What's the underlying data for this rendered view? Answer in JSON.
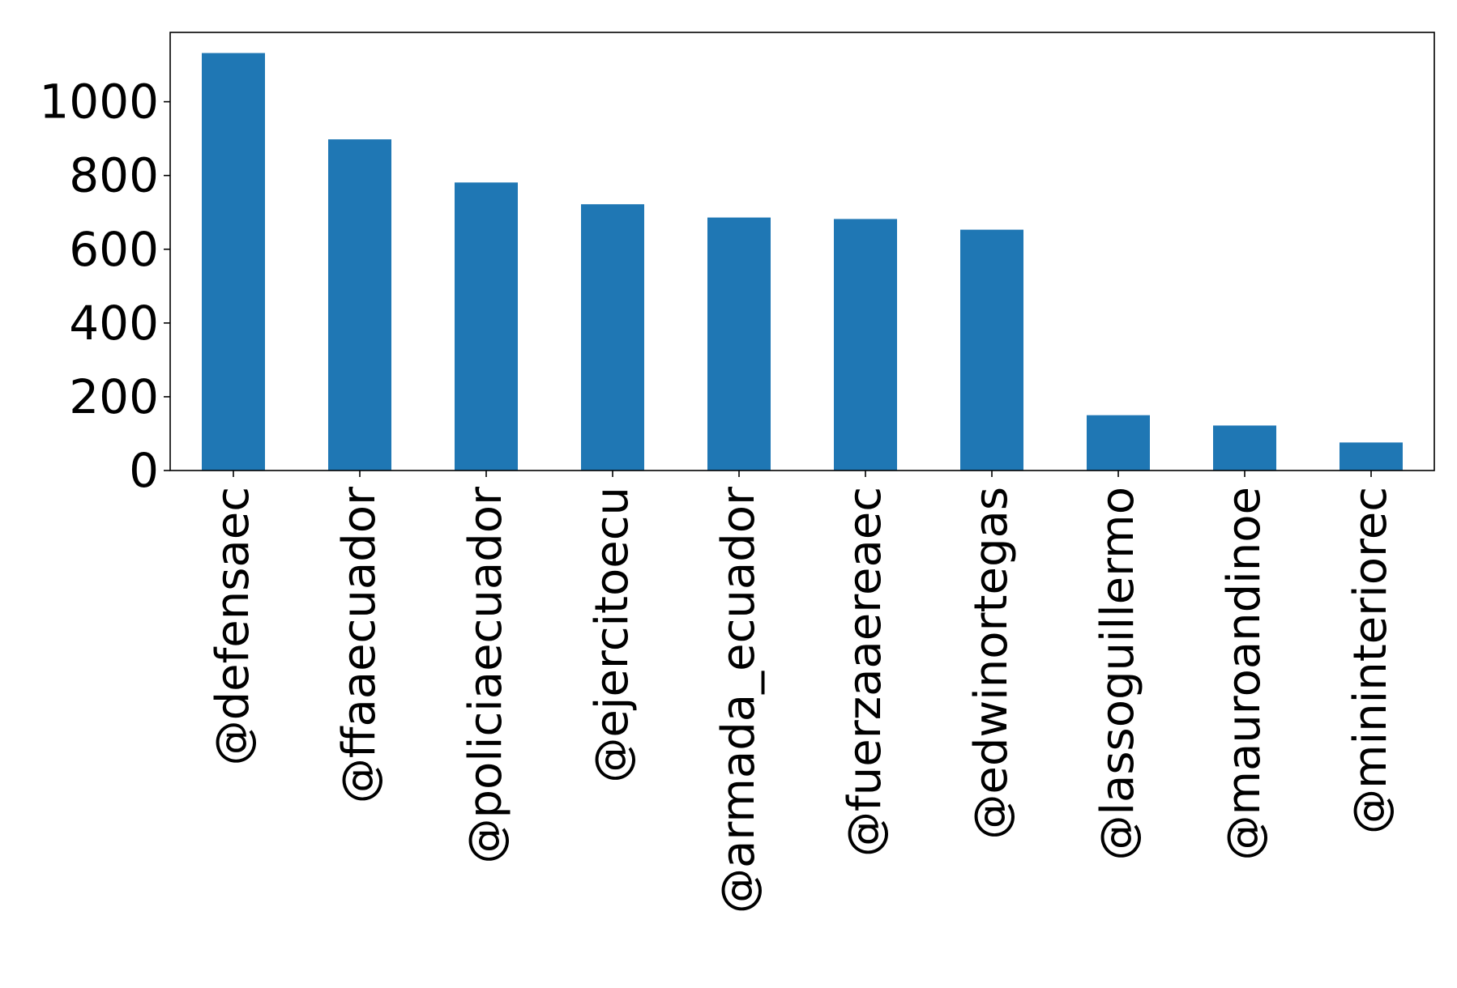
{
  "chart_data": {
    "type": "bar",
    "title": "",
    "xlabel": "",
    "ylabel": "",
    "categories": [
      "@defensaec",
      "@ffaaecuador",
      "@policiaecuador",
      "@ejercitoecu",
      "@armada_ecuador",
      "@fuerzaaereaec",
      "@edwinortegas",
      "@lassoguillermo",
      "@mauroandinoe",
      "@mininteriorec"
    ],
    "values": [
      1132,
      898,
      781,
      722,
      686,
      682,
      653,
      150,
      122,
      76
    ],
    "ylim": [
      0,
      1188
    ],
    "yticks": [
      0,
      200,
      400,
      600,
      800,
      1000
    ],
    "ytick_labels": [
      "0",
      "200",
      "400",
      "600",
      "800",
      "1000"
    ],
    "grid": false,
    "legend": "none",
    "bar_color": "#1f77b4",
    "x_tick_rotation": "vertical"
  }
}
